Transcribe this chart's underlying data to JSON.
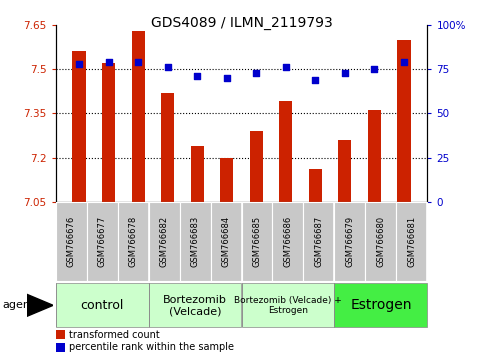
{
  "title": "GDS4089 / ILMN_2119793",
  "samples": [
    "GSM766676",
    "GSM766677",
    "GSM766678",
    "GSM766682",
    "GSM766683",
    "GSM766684",
    "GSM766685",
    "GSM766686",
    "GSM766687",
    "GSM766679",
    "GSM766680",
    "GSM766681"
  ],
  "bar_values": [
    7.56,
    7.52,
    7.63,
    7.42,
    7.24,
    7.2,
    7.29,
    7.39,
    7.16,
    7.26,
    7.36,
    7.6
  ],
  "dot_values": [
    78,
    79,
    79,
    76,
    71,
    70,
    73,
    76,
    69,
    73,
    75,
    79
  ],
  "ylim_left": [
    7.05,
    7.65
  ],
  "ylim_right": [
    0,
    100
  ],
  "yticks_left": [
    7.05,
    7.2,
    7.35,
    7.5,
    7.65
  ],
  "yticks_right": [
    0,
    25,
    50,
    75,
    100
  ],
  "ytick_labels_left": [
    "7.05",
    "7.2",
    "7.35",
    "7.5",
    "7.65"
  ],
  "ytick_labels_right": [
    "0",
    "25",
    "50",
    "75",
    "100%"
  ],
  "hlines": [
    7.2,
    7.35,
    7.5
  ],
  "groups": [
    {
      "label": "control",
      "start": 0,
      "end": 3,
      "color": "#ccffcc",
      "fontsize": 9
    },
    {
      "label": "Bortezomib\n(Velcade)",
      "start": 3,
      "end": 6,
      "color": "#ccffcc",
      "fontsize": 8
    },
    {
      "label": "Bortezomib (Velcade) +\nEstrogen",
      "start": 6,
      "end": 9,
      "color": "#ccffcc",
      "fontsize": 6.5
    },
    {
      "label": "Estrogen",
      "start": 9,
      "end": 12,
      "color": "#44ee44",
      "fontsize": 10
    }
  ],
  "bar_color": "#cc2200",
  "dot_color": "#0000cc",
  "tick_color_left": "#cc2200",
  "tick_color_right": "#0000cc",
  "legend_bar_label": "transformed count",
  "legend_dot_label": "percentile rank within the sample",
  "agent_label": "agent",
  "bar_width": 0.45,
  "sample_box_color": "#c8c8c8",
  "group_border_color": "#888888"
}
